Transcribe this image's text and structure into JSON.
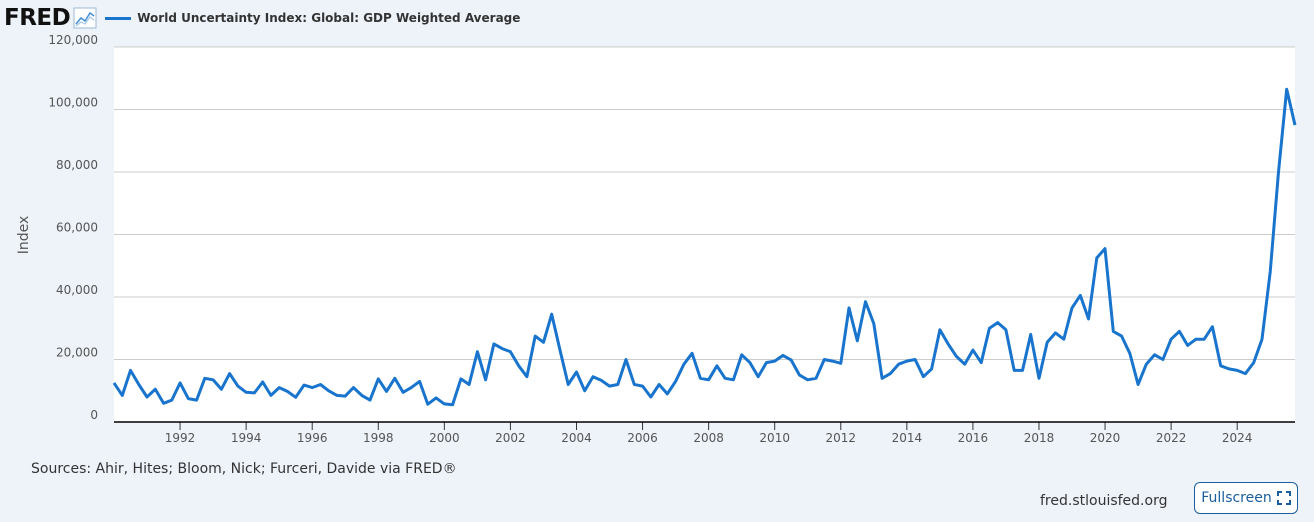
{
  "header": {
    "logo_text": "FRED",
    "logo_icon": "trend-line-icon",
    "series_label": "World Uncertainty Index: Global: GDP Weighted Average"
  },
  "footer": {
    "sources": "Sources: Ahir, Hites; Bloom, Nick; Furceri, Davide via FRED®",
    "site": "fred.stlouisfed.org",
    "fullscreen_label": "Fullscreen",
    "fullscreen_icon": "expand-icon"
  },
  "colors": {
    "line": "#1874cd",
    "background": "#eef3fa",
    "plot_bg": "#ffffff",
    "grid": "#cccccc"
  },
  "chart_data": {
    "type": "line",
    "title": "",
    "xlabel": "",
    "ylabel": "Index",
    "xlim": [
      1990.0,
      2025.75
    ],
    "ylim": [
      0,
      120000
    ],
    "yticks": [
      0,
      20000,
      40000,
      60000,
      80000,
      100000,
      120000
    ],
    "ytick_labels": [
      "0",
      "20,000",
      "40,000",
      "60,000",
      "80,000",
      "100,000",
      "120,000"
    ],
    "xtick_labels": [
      "1992",
      "1994",
      "1996",
      "1998",
      "2000",
      "2002",
      "2004",
      "2006",
      "2008",
      "2010",
      "2012",
      "2014",
      "2016",
      "2018",
      "2020",
      "2022",
      "2024"
    ],
    "grid": true,
    "legend_position": "top-left",
    "series": [
      {
        "name": "World Uncertainty Index: Global: GDP Weighted Average",
        "x_start": 1990.0,
        "x_step": 0.25,
        "values": [
          12500,
          8500,
          16500,
          12000,
          8000,
          10500,
          6000,
          7000,
          12500,
          7500,
          7000,
          14000,
          13500,
          10500,
          15500,
          11500,
          9500,
          9300,
          12800,
          8500,
          11000,
          9800,
          7900,
          11800,
          11000,
          12000,
          10000,
          8500,
          8300,
          11000,
          8500,
          7000,
          13800,
          9800,
          14000,
          9500,
          11000,
          13000,
          5700,
          7700,
          5800,
          5500,
          13800,
          12000,
          22500,
          13500,
          25000,
          23500,
          22500,
          18000,
          14500,
          27500,
          25500,
          34500,
          23000,
          12000,
          16000,
          10000,
          14500,
          13300,
          11500,
          12000,
          20000,
          12000,
          11500,
          8000,
          12000,
          9000,
          13000,
          18500,
          22000,
          14000,
          13500,
          18000,
          14000,
          13500,
          21500,
          19000,
          14500,
          19000,
          19500,
          21300,
          19800,
          15000,
          13500,
          14000,
          20000,
          19500,
          18800,
          36500,
          26000,
          38500,
          31500,
          14000,
          15500,
          18500,
          19500,
          20000,
          14500,
          17000,
          29500,
          25000,
          21000,
          18500,
          23000,
          19000,
          30000,
          31800,
          29500,
          16500,
          16500,
          28000,
          14000,
          25500,
          28500,
          26500,
          36500,
          40500,
          33000,
          52500,
          55500,
          29000,
          27500,
          22000,
          12000,
          18500,
          21500,
          20000,
          26500,
          29000,
          24500,
          26500,
          26500,
          30500,
          18000,
          17000,
          16500,
          15500,
          19000,
          26500,
          48000,
          80000,
          106500,
          95000
        ]
      }
    ]
  }
}
